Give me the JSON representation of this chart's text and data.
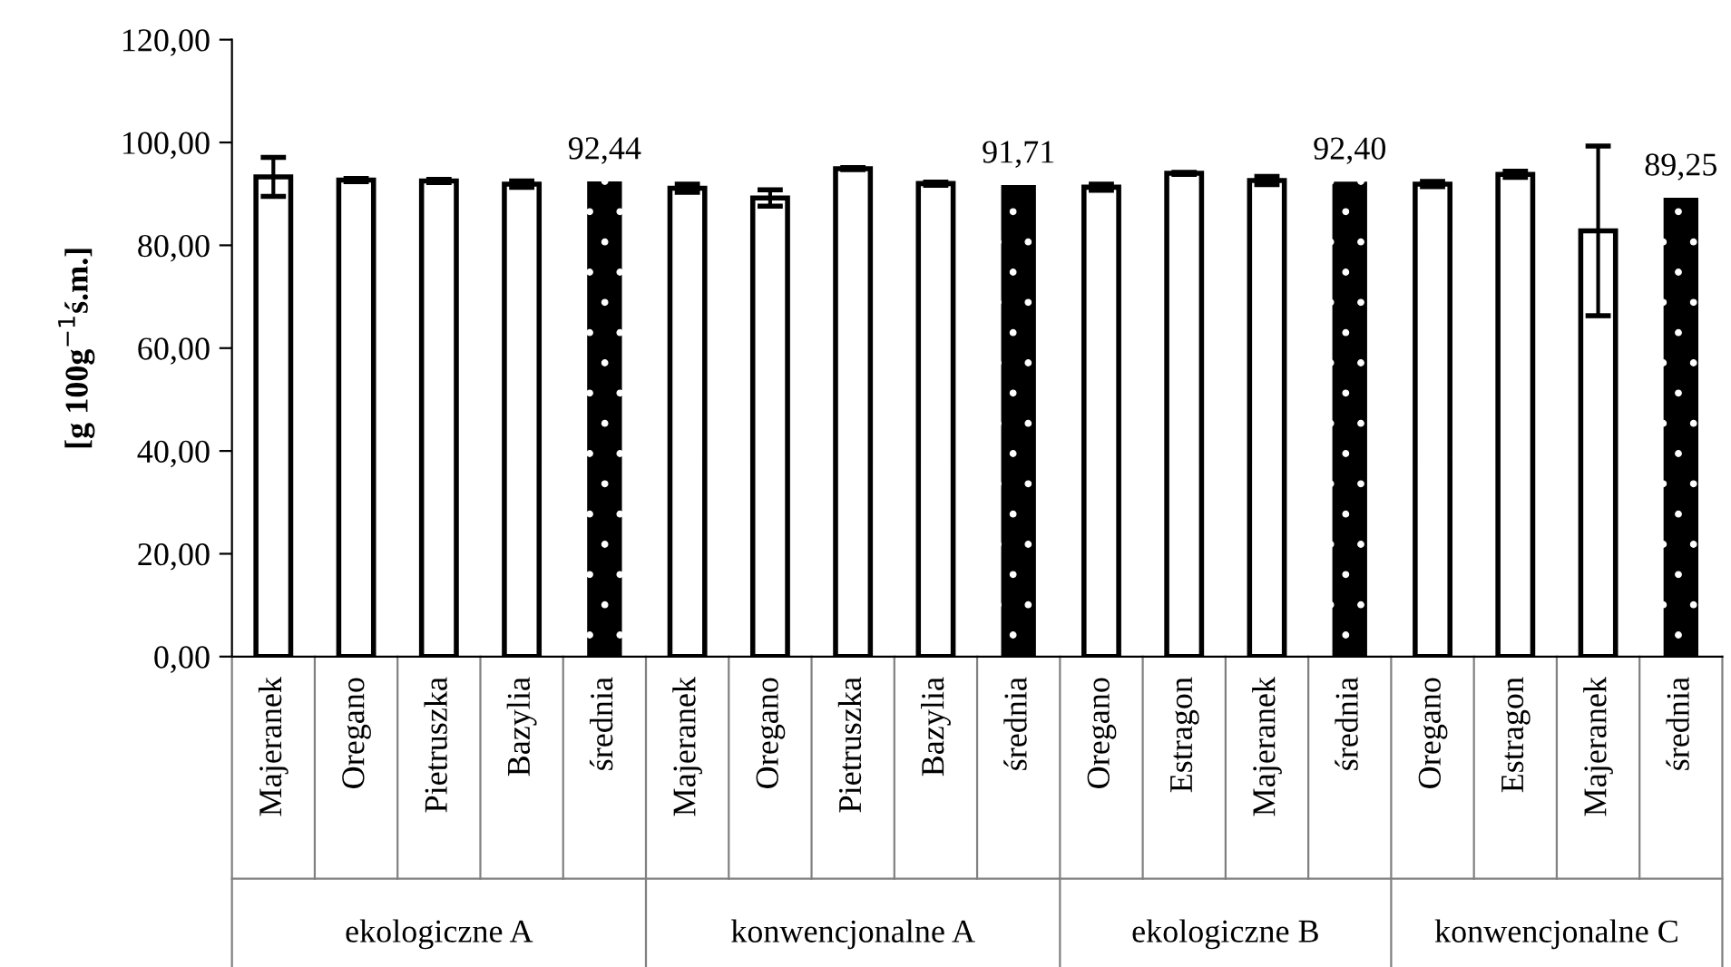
{
  "chart_data": {
    "type": "bar",
    "ylabel": "[g 100g$^{−1}$ś.m.]",
    "categories": [
      "Majeranek",
      "Oregano",
      "Pietruszka",
      "Bazylia",
      "średnia",
      "Majeranek",
      "Oregano",
      "Pietruszka",
      "Bazylia",
      "średnia",
      "Oregano",
      "Estragon",
      "Majeranek",
      "średnia",
      "Oregano",
      "Estragon",
      "Majeranek",
      "średnia"
    ],
    "values": [
      93.3,
      92.7,
      92.5,
      91.9,
      92.44,
      91.1,
      89.2,
      94.9,
      92.0,
      91.71,
      91.3,
      94.0,
      92.6,
      92.4,
      91.9,
      93.8,
      82.8,
      89.25
    ],
    "errors": [
      3.8,
      0.3,
      0.3,
      0.6,
      null,
      0.8,
      1.6,
      0.2,
      0.3,
      null,
      0.6,
      0.2,
      0.8,
      null,
      0.5,
      0.6,
      16.5,
      null
    ],
    "value_labels": [
      null,
      null,
      null,
      null,
      "92,44",
      null,
      null,
      null,
      null,
      "91,71",
      null,
      null,
      null,
      "92,40",
      null,
      null,
      null,
      "89,25"
    ],
    "colors": [
      "#ffffff",
      "#ffffff",
      "#ffffff",
      "#ffffff",
      "#000000",
      "#ffffff",
      "#ffffff",
      "#ffffff",
      "#ffffff",
      "#000000",
      "#ffffff",
      "#ffffff",
      "#ffffff",
      "#000000",
      "#ffffff",
      "#ffffff",
      "#ffffff",
      "#000000"
    ],
    "annotations": [
      "ekologiczne A",
      "konwencjonalne A",
      "ekologiczne B",
      "konwencjonalne C"
    ],
    "ylim": [
      0,
      120
    ],
    "yticks": [
      {
        "value": 0,
        "label": "0,00"
      },
      {
        "value": 20,
        "label": "20,00"
      },
      {
        "value": 40,
        "label": "40,00"
      },
      {
        "value": 60,
        "label": "60,00"
      },
      {
        "value": 80,
        "label": "80,00"
      },
      {
        "value": 100,
        "label": "100,00"
      },
      {
        "value": 120,
        "label": "120,00"
      }
    ],
    "grid": false,
    "legend": false
  }
}
